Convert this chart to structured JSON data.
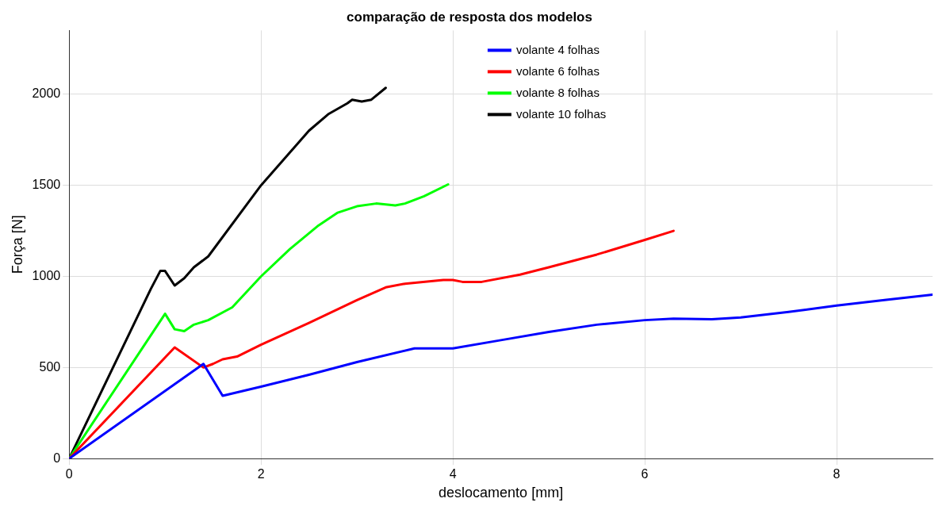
{
  "chart_data": {
    "type": "line",
    "title": "comparação de resposta dos modelos",
    "xlabel": "deslocamento [mm]",
    "ylabel": "Força [N]",
    "xlim": [
      0,
      9
    ],
    "xticks": [
      0,
      2,
      4,
      6,
      8
    ],
    "ylim": [
      0,
      2350
    ],
    "yticks": [
      0,
      500,
      1000,
      1500,
      2000
    ],
    "grid": true,
    "legend": "top",
    "marker": "none",
    "line_style": "solid",
    "series": [
      {
        "name": "volante 4 folhas",
        "color": "#0000ff",
        "x": [
          0,
          1.4,
          1.6,
          2,
          2.5,
          3,
          3.6,
          4,
          4.5,
          5,
          5.5,
          6,
          6.3,
          6.7,
          7,
          7.5,
          8,
          8.5,
          9
        ],
        "values": [
          0,
          520,
          345,
          395,
          460,
          530,
          605,
          605,
          650,
          695,
          735,
          760,
          768,
          765,
          775,
          805,
          840,
          870,
          900
        ]
      },
      {
        "name": "volante 6 folhas",
        "color": "#ff0000",
        "x": [
          0,
          1.1,
          1.4,
          1.5,
          1.6,
          1.75,
          2,
          2.5,
          3,
          3.3,
          3.5,
          3.9,
          4,
          4.1,
          4.3,
          4.7,
          5,
          5.5,
          6,
          6.3
        ],
        "values": [
          0,
          610,
          500,
          520,
          545,
          560,
          625,
          745,
          870,
          940,
          960,
          980,
          980,
          970,
          970,
          1010,
          1050,
          1120,
          1200,
          1250
        ]
      },
      {
        "name": "volante 8 folhas",
        "color": "#00ff00",
        "x": [
          0,
          1,
          1.1,
          1.2,
          1.3,
          1.45,
          1.7,
          2,
          2.3,
          2.6,
          2.8,
          3,
          3.2,
          3.4,
          3.5,
          3.7,
          3.95
        ],
        "values": [
          0,
          795,
          710,
          700,
          735,
          760,
          830,
          1000,
          1150,
          1280,
          1350,
          1385,
          1400,
          1390,
          1400,
          1440,
          1505
        ]
      },
      {
        "name": "volante 10 folhas",
        "color": "#000000",
        "x": [
          0,
          0.85,
          0.95,
          1,
          1.1,
          1.2,
          1.3,
          1.45,
          2,
          2.5,
          2.7,
          2.9,
          2.95,
          3.05,
          3.15,
          3.3
        ],
        "values": [
          0,
          930,
          1030,
          1030,
          950,
          990,
          1050,
          1110,
          1500,
          1800,
          1890,
          1950,
          1970,
          1960,
          1970,
          2035
        ]
      }
    ]
  }
}
